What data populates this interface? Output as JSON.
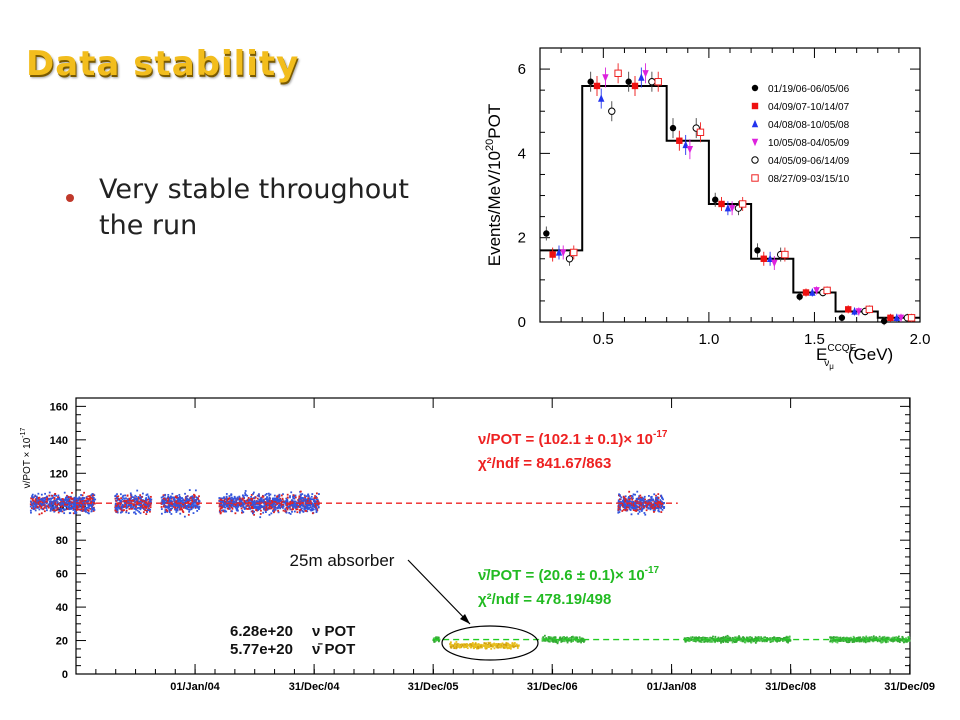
{
  "slide": {
    "title": "Data stability",
    "bullet": "Very stable throughout the run",
    "annotation": "25m absorber"
  },
  "colors": {
    "title": "#f2bd1d",
    "nu_series": "#3355dd",
    "nu_fit": "#ee2222",
    "nubar_series": "#33aa33",
    "nubar_fit": "#22cc22",
    "absorber": "#e8c020",
    "fit_text_nu": "#ee2222",
    "fit_text_nubar": "#22bb22"
  },
  "chart_data": [
    {
      "type": "line",
      "ylabel_main": "Events/MeV/10",
      "ylabel_sup": "20",
      "ylabel_tail": "POT",
      "xlabel_pre": "E",
      "xlabel_sup": "CCQE",
      "xlabel_sub": "ν",
      "xlabel_subsub": "μ",
      "xlabel_post": "(GeV)",
      "xlim": [
        0.2,
        2.0
      ],
      "ylim": [
        0,
        6.5
      ],
      "xticks": [
        "0.5",
        "1.0",
        "1.5",
        "2.0"
      ],
      "xtick_values": [
        0.5,
        1.0,
        1.5,
        2.0
      ],
      "yticks": [
        "0",
        "2",
        "4",
        "6"
      ],
      "ytick_values": [
        0,
        2,
        4,
        6
      ],
      "histogram": {
        "bin_edges": [
          0.2,
          0.4,
          0.8,
          1.0,
          1.2,
          1.4,
          1.6,
          1.8,
          2.0
        ],
        "values": [
          1.7,
          5.6,
          4.3,
          2.8,
          1.5,
          0.7,
          0.25,
          0.1
        ]
      },
      "series": [
        {
          "name": "01/19/06-06/05/06",
          "marker": "circle-filled",
          "color": "#000000",
          "points": [
            [
              0.23,
              2.1
            ],
            [
              0.44,
              5.7
            ],
            [
              0.62,
              5.7
            ],
            [
              0.83,
              4.6
            ],
            [
              1.03,
              2.9
            ],
            [
              1.23,
              1.7
            ],
            [
              1.43,
              0.6
            ],
            [
              1.63,
              0.1
            ],
            [
              1.83,
              0.02
            ]
          ]
        },
        {
          "name": "04/09/07-10/14/07",
          "marker": "square-filled",
          "color": "#ee1111",
          "points": [
            [
              0.26,
              1.6
            ],
            [
              0.47,
              5.6
            ],
            [
              0.65,
              5.6
            ],
            [
              0.86,
              4.3
            ],
            [
              1.06,
              2.8
            ],
            [
              1.26,
              1.5
            ],
            [
              1.46,
              0.7
            ],
            [
              1.66,
              0.3
            ],
            [
              1.86,
              0.1
            ]
          ]
        },
        {
          "name": "04/08/08-10/05/08",
          "marker": "triangle-up",
          "color": "#2233ee",
          "points": [
            [
              0.29,
              1.65
            ],
            [
              0.49,
              5.3
            ],
            [
              0.68,
              5.8
            ],
            [
              0.89,
              4.2
            ],
            [
              1.09,
              2.7
            ],
            [
              1.29,
              1.5
            ],
            [
              1.49,
              0.7
            ],
            [
              1.69,
              0.25
            ],
            [
              1.89,
              0.1
            ]
          ]
        },
        {
          "name": "10/05/08-04/05/09",
          "marker": "triangle-down",
          "color": "#dd22dd",
          "points": [
            [
              0.31,
              1.65
            ],
            [
              0.51,
              5.8
            ],
            [
              0.7,
              5.9
            ],
            [
              0.91,
              4.1
            ],
            [
              1.11,
              2.7
            ],
            [
              1.31,
              1.4
            ],
            [
              1.51,
              0.75
            ],
            [
              1.71,
              0.25
            ],
            [
              1.91,
              0.1
            ]
          ]
        },
        {
          "name": "04/05/09-06/14/09",
          "marker": "circle-open",
          "color": "#000000",
          "points": [
            [
              0.34,
              1.5
            ],
            [
              0.54,
              5.0
            ],
            [
              0.73,
              5.7
            ],
            [
              0.94,
              4.6
            ],
            [
              1.14,
              2.7
            ],
            [
              1.34,
              1.6
            ],
            [
              1.54,
              0.7
            ],
            [
              1.74,
              0.25
            ],
            [
              1.94,
              0.1
            ]
          ]
        },
        {
          "name": "08/27/09-03/15/10",
          "marker": "square-open",
          "color": "#ee2222",
          "points": [
            [
              0.36,
              1.65
            ],
            [
              0.57,
              5.9
            ],
            [
              0.76,
              5.7
            ],
            [
              0.96,
              4.5
            ],
            [
              1.16,
              2.8
            ],
            [
              1.36,
              1.6
            ],
            [
              1.56,
              0.75
            ],
            [
              1.76,
              0.3
            ],
            [
              1.96,
              0.1
            ]
          ]
        }
      ]
    },
    {
      "type": "scatter",
      "ylabel": "ν/POT × 10",
      "ylabel_sup": "-17",
      "ylim": [
        0,
        165
      ],
      "yticks": [
        "0",
        "20",
        "40",
        "60",
        "80",
        "100",
        "120",
        "140",
        "160"
      ],
      "ytick_values": [
        0,
        20,
        40,
        60,
        80,
        100,
        120,
        140,
        160
      ],
      "xlim": [
        "2003-01-01",
        "2010-01-01"
      ],
      "xticks": [
        "01/Jan/04",
        "31/Dec/04",
        "31/Dec/05",
        "31/Dec/06",
        "01/Jan/08",
        "31/Dec/08",
        "31/Dec/09"
      ],
      "xtick_values": [
        "2004-01-01",
        "2004-12-31",
        "2005-12-31",
        "2006-12-31",
        "2008-01-01",
        "2008-12-31",
        "2009-12-31"
      ],
      "nu_fit": {
        "value": 102.1,
        "error": 0.1,
        "text": "ν/POT = (102.1 ±  0.1)× 10",
        "sup": "-17",
        "chi2": "χ²/ndf = 841.67/863"
      },
      "nubar_fit": {
        "value": 20.6,
        "error": 0.1,
        "text": "ν̄/POT = (20.6 ±  0.1)× 10",
        "sup": "-17",
        "chi2": "χ²/ndf = 478.19/498"
      },
      "pot": [
        {
          "value": "6.28e+20",
          "label": "ν POT"
        },
        {
          "value": "5.77e+20",
          "label": "ν̄ POT"
        }
      ],
      "series": [
        {
          "name": "ν",
          "level": 102,
          "spread": 5,
          "periods": [
            [
              "2002-08-15",
              "2003-03-01"
            ],
            [
              "2003-05-01",
              "2003-08-20"
            ],
            [
              "2003-09-20",
              "2004-01-15"
            ],
            [
              "2004-03-15",
              "2005-01-15"
            ],
            [
              "2007-07-20",
              "2007-12-10"
            ]
          ]
        },
        {
          "name": "ν̄",
          "level": 20.6,
          "spread": 1.5,
          "periods": [
            [
              "2005-12-31",
              "2006-01-20"
            ],
            [
              "2006-12-01",
              "2007-04-10"
            ],
            [
              "2008-02-10",
              "2008-12-31"
            ],
            [
              "2009-05-01",
              "2009-12-31"
            ]
          ]
        },
        {
          "name": "25m absorber",
          "level": 17,
          "spread": 1.5,
          "periods": [
            [
              "2006-02-20",
              "2006-09-20"
            ]
          ]
        }
      ]
    }
  ]
}
